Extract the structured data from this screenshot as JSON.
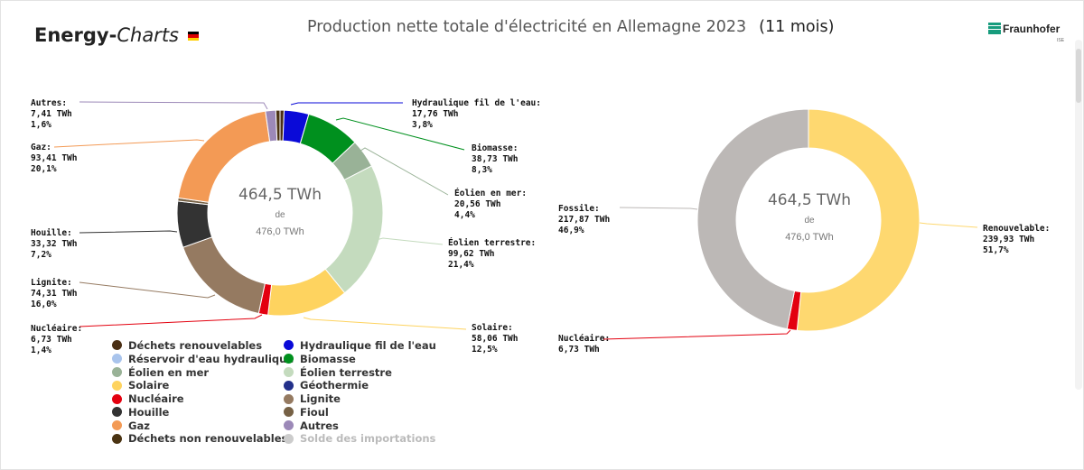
{
  "header": {
    "logo_prefix": "Energy-",
    "logo_suffix": "Charts",
    "title": "Production nette totale d'électricité en Allemagne 2023",
    "subtitle": "(11 mois)",
    "brand": "Fraunhofer",
    "brand_sub": "ISE",
    "flag_colors": [
      "#000000",
      "#dd0000",
      "#ffce00"
    ]
  },
  "chart_data": [
    {
      "type": "donut",
      "unit": "TWh",
      "center": {
        "value": "464,5 TWh",
        "of": "de",
        "max": "476,0 TWh"
      },
      "max_total": 476.0,
      "slices": [
        {
          "name": "Déchets renouvelables",
          "value": 2.9,
          "color": "#4a2f14"
        },
        {
          "name": "Hydraulique fil de l'eau",
          "value": 17.76,
          "color": "#0a0ad8",
          "label": [
            "Hydraulique fil de l'eau:",
            "17,76 TWh",
            "3,8%"
          ]
        },
        {
          "name": "Biomasse",
          "value": 38.73,
          "color": "#00901e",
          "label": [
            "Biomasse:",
            "38,73 TWh",
            "8,3%"
          ]
        },
        {
          "name": "Éolien en mer",
          "value": 20.56,
          "color": "#99b297",
          "label": [
            "Éolien en mer:",
            "20,56 TWh",
            "4,4%"
          ]
        },
        {
          "name": "Éolien terrestre",
          "value": 99.62,
          "color": "#c4dbbe",
          "label": [
            "Éolien terrestre:",
            "99,62 TWh",
            "21,4%"
          ]
        },
        {
          "name": "Solaire",
          "value": 58.06,
          "color": "#fed35f",
          "label": [
            "Solaire:",
            "58,06 TWh",
            "12,5%"
          ]
        },
        {
          "name": "Nucléaire",
          "value": 6.73,
          "color": "#e3000f",
          "label": [
            "Nucléaire:",
            "6,73 TWh",
            "1,4%"
          ]
        },
        {
          "name": "Lignite",
          "value": 74.31,
          "color": "#957a61",
          "label": [
            "Lignite:",
            "74,31 TWh",
            "16,0%"
          ]
        },
        {
          "name": "Houille",
          "value": 33.32,
          "color": "#333333",
          "label": [
            "Houille:",
            "33,32 TWh",
            "7,2%"
          ]
        },
        {
          "name": "Fioul",
          "value": 2.3,
          "color": "#766145"
        },
        {
          "name": "Gaz",
          "value": 93.41,
          "color": "#f39a55",
          "label": [
            "Gaz:",
            "93,41 TWh",
            "20,1%"
          ]
        },
        {
          "name": "Autres",
          "value": 7.41,
          "color": "#9c89b8",
          "label": [
            "Autres:",
            "7,41 TWh",
            "1,6%"
          ]
        },
        {
          "name": "Déchets non renouvelables",
          "value": 3.0,
          "color": "#4a3312"
        }
      ],
      "legend": [
        {
          "label": "Déchets renouvelables",
          "color": "#4a2f14",
          "enabled": true
        },
        {
          "label": "Hydraulique fil de l'eau",
          "color": "#0a0ad8",
          "enabled": true
        },
        {
          "label": "Réservoir d'eau hydraulique",
          "color": "#a9c4ec",
          "enabled": true
        },
        {
          "label": "Biomasse",
          "color": "#00901e",
          "enabled": true
        },
        {
          "label": "Éolien en mer",
          "color": "#99b297",
          "enabled": true
        },
        {
          "label": "Éolien terrestre",
          "color": "#c4dbbe",
          "enabled": true
        },
        {
          "label": "Solaire",
          "color": "#fed35f",
          "enabled": true
        },
        {
          "label": "Géothermie",
          "color": "#23308a",
          "enabled": true
        },
        {
          "label": "Nucléaire",
          "color": "#e3000f",
          "enabled": true
        },
        {
          "label": "Lignite",
          "color": "#957a61",
          "enabled": true
        },
        {
          "label": "Houille",
          "color": "#333333",
          "enabled": true
        },
        {
          "label": "Fioul",
          "color": "#766145",
          "enabled": true
        },
        {
          "label": "Gaz",
          "color": "#f39a55",
          "enabled": true
        },
        {
          "label": "Autres",
          "color": "#9c89b8",
          "enabled": true
        },
        {
          "label": "Déchets non renouvelables",
          "color": "#4a3312",
          "enabled": true
        },
        {
          "label": "Solde des importations",
          "color": "#cccccc",
          "enabled": false
        }
      ]
    },
    {
      "type": "donut",
      "unit": "TWh",
      "center": {
        "value": "464,5 TWh",
        "of": "de",
        "max": "476,0 TWh"
      },
      "max_total": 476.0,
      "slices": [
        {
          "name": "Renouvelable",
          "value": 239.93,
          "color": "#fed870",
          "label": [
            "Renouvelable:",
            "239,93 TWh",
            "51,7%"
          ]
        },
        {
          "name": "Nucléaire",
          "value": 6.73,
          "color": "#e3000f",
          "label": [
            "Nucléaire:",
            "6,73 TWh"
          ]
        },
        {
          "name": "Fossile",
          "value": 217.87,
          "color": "#bcb8b6",
          "label": [
            "Fossile:",
            "217,87 TWh",
            "46,9%"
          ]
        }
      ]
    }
  ]
}
